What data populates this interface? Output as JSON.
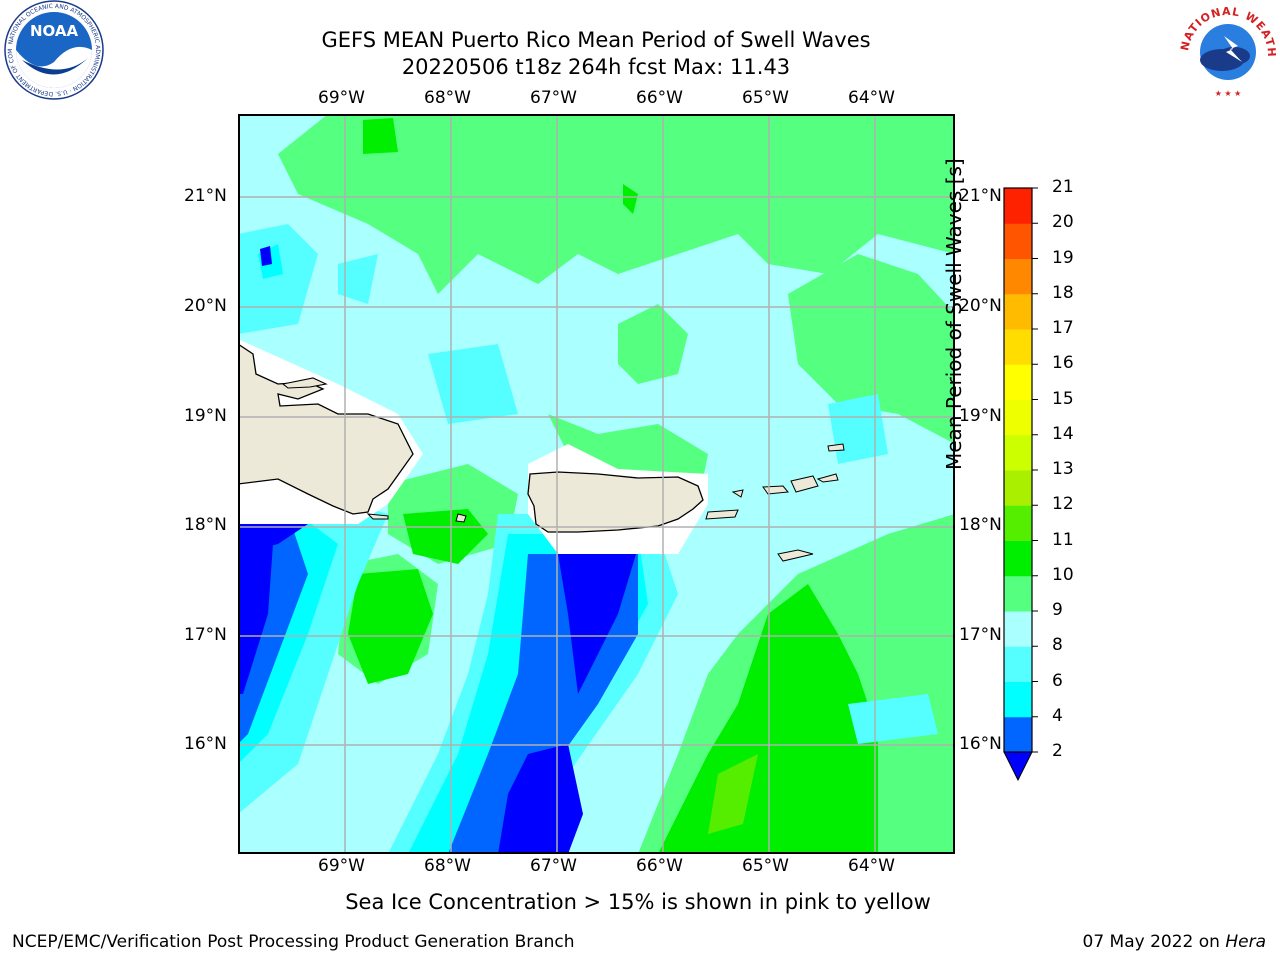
{
  "title": {
    "line1": "GEFS MEAN Puerto Rico Mean Period of Swell Waves",
    "line2": "20220506 t18z 264h fcst   Max: 11.43"
  },
  "logos": {
    "left": {
      "name": "noaa-logo",
      "text": "NOAA",
      "ring_text": "NATIONAL OCEANIC AND ATMOSPHERIC ADMINISTRATION · U.S. DEPARTMENT OF COMMERCE"
    },
    "right": {
      "name": "nws-logo",
      "ring_text": "NATIONAL WEATHER SERVICE"
    }
  },
  "map": {
    "longitude_labels": [
      "69°W",
      "68°W",
      "67°W",
      "66°W",
      "65°W",
      "64°W"
    ],
    "latitude_labels": [
      "21°N",
      "20°N",
      "19°N",
      "18°N",
      "17°N",
      "16°N"
    ],
    "lon_range": [
      -70.0,
      -63.25
    ],
    "lat_range": [
      15.0,
      21.75
    ],
    "grid": true
  },
  "colorbar": {
    "title": "Mean Period of Swell Waves [s]",
    "ticks": [
      "2",
      "4",
      "6",
      "8",
      "9",
      "10",
      "11",
      "12",
      "13",
      "14",
      "15",
      "16",
      "17",
      "18",
      "19",
      "20",
      "21"
    ],
    "colors": [
      "#0066ff",
      "#00ffff",
      "#55ffff",
      "#aaffff",
      "#55ff80",
      "#00ee00",
      "#55ee00",
      "#aaee00",
      "#ccff00",
      "#eeff00",
      "#ffff00",
      "#ffdd00",
      "#ffbb00",
      "#ff8800",
      "#ff5500",
      "#ff2200",
      "#ff0000"
    ],
    "extend_low_color": "#0000ff"
  },
  "note": "Sea Ice Concentration > 15% is shown in pink to yellow",
  "footer": {
    "left": "NCEP/EMC/Verification Post Processing Product Generation Branch",
    "right_date": "07 May 2022 on ",
    "right_machine": "Hera"
  },
  "colors": {
    "land": "#ede9d8",
    "no_data": "#ffffff",
    "grid": "#b0b0b0"
  }
}
